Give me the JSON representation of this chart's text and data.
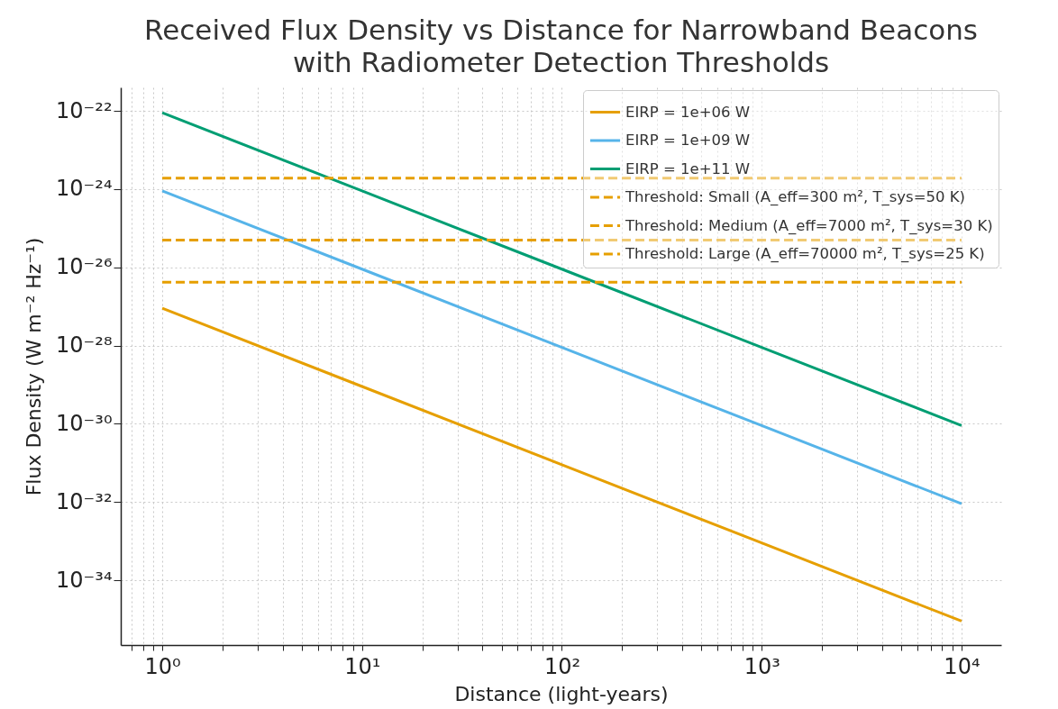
{
  "chart_data": {
    "type": "line",
    "title": "Received Flux Density vs Distance for Narrowband Beacons\nwith Radiometer Detection Thresholds",
    "xlabel": "Distance (light-years)",
    "ylabel": "Flux Density (W m⁻² Hz⁻¹)",
    "log": "xy",
    "grid": true,
    "legend": "top right",
    "xlim": [
      0.62,
      15800
    ],
    "ylim": [
      2.2e-36,
      4e-22
    ],
    "xticks": [
      {
        "value": 0.7,
        "label": null
      },
      {
        "value": 0.8,
        "label": null
      },
      {
        "value": 0.9,
        "label": null
      },
      {
        "value": 1,
        "label": "10⁰"
      },
      {
        "value": 2,
        "label": null
      },
      {
        "value": 3,
        "label": null
      },
      {
        "value": 4,
        "label": null
      },
      {
        "value": 5,
        "label": null
      },
      {
        "value": 6,
        "label": null
      },
      {
        "value": 7,
        "label": null
      },
      {
        "value": 8,
        "label": null
      },
      {
        "value": 9,
        "label": null
      },
      {
        "value": 10,
        "label": "10¹"
      },
      {
        "value": 20,
        "label": null
      },
      {
        "value": 30,
        "label": null
      },
      {
        "value": 40,
        "label": null
      },
      {
        "value": 50,
        "label": null
      },
      {
        "value": 60,
        "label": null
      },
      {
        "value": 70,
        "label": null
      },
      {
        "value": 80,
        "label": null
      },
      {
        "value": 90,
        "label": null
      },
      {
        "value": 100,
        "label": "10²"
      },
      {
        "value": 200,
        "label": null
      },
      {
        "value": 300,
        "label": null
      },
      {
        "value": 400,
        "label": null
      },
      {
        "value": 500,
        "label": null
      },
      {
        "value": 600,
        "label": null
      },
      {
        "value": 700,
        "label": null
      },
      {
        "value": 800,
        "label": null
      },
      {
        "value": 900,
        "label": null
      },
      {
        "value": 1000,
        "label": "10³"
      },
      {
        "value": 2000,
        "label": null
      },
      {
        "value": 3000,
        "label": null
      },
      {
        "value": 4000,
        "label": null
      },
      {
        "value": 5000,
        "label": null
      },
      {
        "value": 6000,
        "label": null
      },
      {
        "value": 7000,
        "label": null
      },
      {
        "value": 8000,
        "label": null
      },
      {
        "value": 9000,
        "label": null
      },
      {
        "value": 10000,
        "label": "10⁴"
      }
    ],
    "yticks": [
      {
        "value": 1e-34,
        "label": "10⁻³⁴"
      },
      {
        "value": 1e-32,
        "label": "10⁻³²"
      },
      {
        "value": 1e-30,
        "label": "10⁻³⁰"
      },
      {
        "value": 1e-28,
        "label": "10⁻²⁸"
      },
      {
        "value": 1e-26,
        "label": "10⁻²⁶"
      },
      {
        "value": 1e-24,
        "label": "10⁻²⁴"
      },
      {
        "value": 1e-22,
        "label": "10⁻²²"
      }
    ],
    "x": [
      1,
      10,
      100,
      1000,
      10000
    ],
    "series": [
      {
        "name": "EIRP = 1e+06 W",
        "color": "#e69f00",
        "values": [
          9e-28,
          9e-30,
          9e-32,
          9e-34,
          9e-36
        ]
      },
      {
        "name": "EIRP = 1e+09 W",
        "color": "#56b4e9",
        "values": [
          9e-25,
          9e-27,
          9e-29,
          9e-31,
          9e-33
        ]
      },
      {
        "name": "EIRP = 1e+11 W",
        "color": "#009e73",
        "values": [
          9e-23,
          9e-25,
          9e-27,
          9e-29,
          9e-31
        ]
      },
      {
        "name": "Threshold: Small (A_eff=300 m², T_sys=50 K)",
        "color": "#e69f00",
        "line_style": "dashed",
        "values": [
          1.9e-24,
          1.9e-24,
          1.9e-24,
          1.9e-24,
          1.9e-24
        ]
      },
      {
        "name": "Threshold: Medium (A_eff=7000 m², T_sys=30 K)",
        "color": "#e69f00",
        "line_style": "dashed",
        "values": [
          5e-26,
          5e-26,
          5e-26,
          5e-26,
          5e-26
        ]
      },
      {
        "name": "Threshold: Large (A_eff=70000 m², T_sys=25 K)",
        "color": "#e69f00",
        "line_style": "dashed",
        "values": [
          4.2e-27,
          4.2e-27,
          4.2e-27,
          4.2e-27,
          4.2e-27
        ]
      }
    ]
  }
}
